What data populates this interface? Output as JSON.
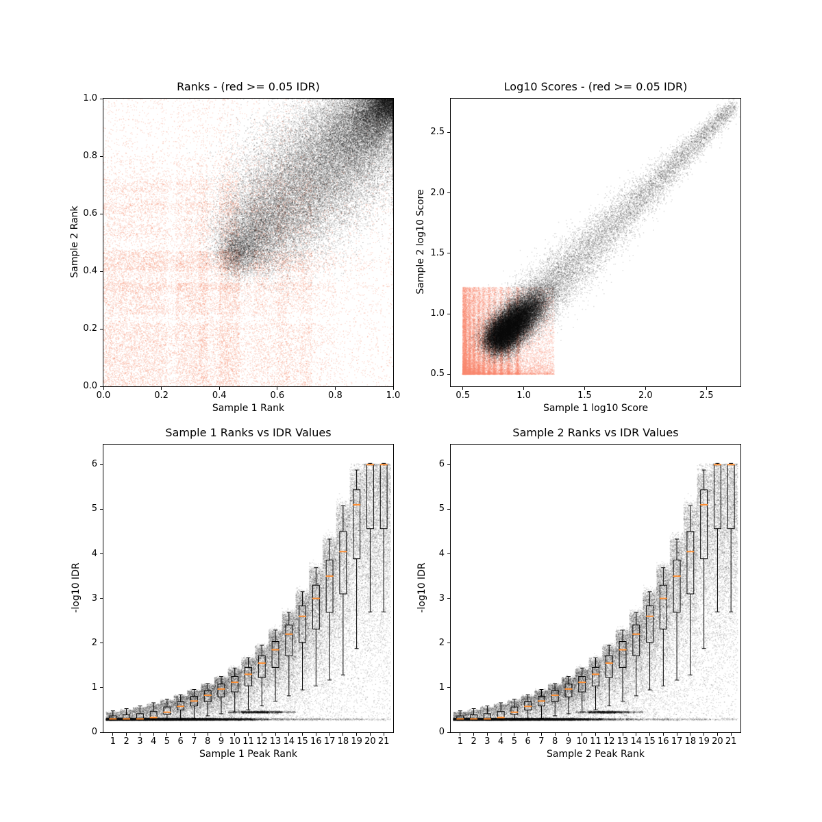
{
  "figure": {
    "background": "#ffffff"
  },
  "colors": {
    "salmon": "#F78B70",
    "black": "#000000",
    "median_orange": "#FF8F33"
  },
  "chart_data": [
    {
      "id": "ranks",
      "type": "scatter",
      "title": "Ranks - (red >= 0.05 IDR)",
      "xlabel": "Sample 1 Rank",
      "ylabel": "Sample 2 Rank",
      "xlim": [
        0.0,
        1.0
      ],
      "ylim": [
        0.0,
        1.0
      ],
      "xticks": [
        0.0,
        0.2,
        0.4,
        0.6,
        0.8,
        1.0
      ],
      "xtick_labels": [
        "0.0",
        "0.2",
        "0.4",
        "0.6",
        "0.8",
        "1.0"
      ],
      "yticks": [
        0.0,
        0.2,
        0.4,
        0.6,
        0.8,
        1.0
      ],
      "ytick_labels": [
        "0.0",
        "0.2",
        "0.4",
        "0.6",
        "0.8",
        "1.0"
      ],
      "grid": false,
      "legend": null,
      "series": [
        {
          "name": "IDR >= 0.05",
          "kind": "bands2d",
          "color": "#F78B70",
          "alpha": 0.2,
          "size": 1.6,
          "n": 26000,
          "seed": 11,
          "bands": [
            [
              0.0,
              0.22,
              30
            ],
            [
              0.22,
              0.25,
              2
            ],
            [
              0.25,
              0.3,
              7
            ],
            [
              0.3,
              0.33,
              4
            ],
            [
              0.33,
              0.36,
              6
            ],
            [
              0.36,
              0.4,
              4
            ],
            [
              0.4,
              0.43,
              6
            ],
            [
              0.43,
              0.47,
              7
            ],
            [
              0.47,
              0.52,
              3
            ],
            [
              0.52,
              0.56,
              4
            ],
            [
              0.56,
              0.6,
              3
            ],
            [
              0.6,
              0.64,
              5
            ],
            [
              0.64,
              0.68,
              3
            ],
            [
              0.68,
              0.72,
              4
            ],
            [
              0.72,
              0.8,
              3
            ],
            [
              0.8,
              1.0,
              4
            ]
          ]
        },
        {
          "name": "IDR < 0.05",
          "kind": "rank_blob",
          "color": "#000000",
          "alpha": 0.11,
          "size": 1.6,
          "n": 60000,
          "seed": 12,
          "span": 0.55,
          "tpow": 1.6,
          "wbase": 0.03,
          "wamp": 1.1,
          "wlo": 0.45
        }
      ]
    },
    {
      "id": "scores",
      "type": "scatter",
      "title": "Log10 Scores - (red >= 0.05 IDR)",
      "xlabel": "Sample 1 log10 Score",
      "ylabel": "Sample 2 log10 Score",
      "xlim": [
        0.4,
        2.78
      ],
      "ylim": [
        0.4,
        2.78
      ],
      "xticks": [
        0.5,
        1.0,
        1.5,
        2.0,
        2.5
      ],
      "xtick_labels": [
        "0.5",
        "1.0",
        "1.5",
        "2.0",
        "2.5"
      ],
      "yticks": [
        0.5,
        1.0,
        1.5,
        2.0,
        2.5
      ],
      "ytick_labels": [
        "0.5",
        "1.0",
        "1.5",
        "2.0",
        "2.5"
      ],
      "grid": false,
      "legend": null,
      "series": [
        {
          "name": "IDR >= 0.05",
          "kind": "score_salmon",
          "color": "#F78B70",
          "alpha": 0.16,
          "size": 1.6,
          "n": 24000,
          "seed": 21,
          "x0": 0.5,
          "y0": 0.5,
          "xspread": 0.75,
          "yspread": 0.72,
          "pow": 1.8,
          "stripes": [
            0.52,
            0.555,
            0.59,
            0.63,
            0.67,
            0.715,
            0.76,
            0.815,
            0.875,
            0.95
          ],
          "stripe_p": 0.45
        },
        {
          "name": "IDR < 0.05",
          "kind": "score_comet",
          "color": "#000000",
          "alpha": 0.11,
          "size": 1.6,
          "n": 48000,
          "seed": 22,
          "s0": 0.8,
          "s1": 2.72,
          "spow": 3.0,
          "wS": [
            0.8,
            1.0,
            1.4,
            1.8,
            2.2,
            2.6
          ],
          "wV": [
            0.1,
            0.13,
            0.14,
            0.11,
            0.08,
            0.05
          ],
          "head_frac": 0.5,
          "head_mu": 0.92,
          "head_sd": 0.1,
          "head_w": 0.09
        }
      ]
    },
    {
      "id": "idr_sample1",
      "type": "scatter",
      "title": "Sample 1 Ranks vs IDR Values",
      "xlabel": "Sample 1 Peak Rank",
      "ylabel": "-log10 IDR",
      "xlim": [
        0.3,
        21.7
      ],
      "ylim": [
        0.0,
        6.45
      ],
      "xticks": [
        1,
        2,
        3,
        4,
        5,
        6,
        7,
        8,
        9,
        10,
        11,
        12,
        13,
        14,
        15,
        16,
        17,
        18,
        19,
        20,
        21
      ],
      "xtick_labels": [
        "1",
        "2",
        "3",
        "4",
        "5",
        "6",
        "7",
        "8",
        "9",
        "10",
        "11",
        "12",
        "13",
        "14",
        "15",
        "16",
        "17",
        "18",
        "19",
        "20",
        "21"
      ],
      "yticks": [
        0,
        1,
        2,
        3,
        4,
        5,
        6
      ],
      "ytick_labels": [
        "0",
        "1",
        "2",
        "3",
        "4",
        "5",
        "6"
      ],
      "grid": false,
      "legend": null,
      "series": [
        {
          "name": "peaks",
          "kind": "idr_scatter",
          "color": "#000000",
          "alpha": 0.09,
          "size": 1.6,
          "n": 60000,
          "seed": 31,
          "tops": [
            0.45,
            0.5,
            0.56,
            0.63,
            0.71,
            0.81,
            0.93,
            1.06,
            1.22,
            1.41,
            1.64,
            1.92,
            2.26,
            2.66,
            3.12,
            3.66,
            4.3,
            5.05,
            5.85,
            6.0,
            6.0
          ],
          "medians": [
            0.3,
            0.3,
            0.3,
            0.33,
            0.45,
            0.58,
            0.7,
            0.83,
            0.97,
            1.12,
            1.3,
            1.55,
            1.85,
            2.2,
            2.6,
            3.0,
            3.5,
            4.05,
            5.1,
            6.0,
            6.0
          ],
          "flow": [
            0.8,
            0.8,
            0.78,
            0.74,
            0.68,
            0.6,
            0.52,
            0.44,
            0.35,
            0.26,
            0.18,
            0.09,
            0.05,
            0.04,
            0.03,
            0.03,
            0.02,
            0.02,
            0.02,
            0.01,
            0.01
          ],
          "bar2_p": [
            0,
            0,
            0,
            0,
            0,
            0,
            0,
            0,
            0,
            0.05,
            0.2,
            0.25,
            0.12,
            0.04,
            0,
            0,
            0,
            0,
            0,
            0,
            0
          ],
          "bar_y": 0.29,
          "bar_sd": 0.013,
          "bar2_y": 0.45,
          "fill_p": 0.15,
          "env_spread": 0.16
        },
        {
          "name": "boxplot",
          "kind": "idr_boxes",
          "box_color": "#000000",
          "median_color": "#FF8F33",
          "box_w": 0.5,
          "median_w": 0.55
        }
      ]
    },
    {
      "id": "idr_sample2",
      "type": "scatter",
      "title": "Sample 2 Ranks vs IDR Values",
      "xlabel": "Sample 2 Peak Rank",
      "ylabel": "-log10 IDR",
      "xlim": [
        0.3,
        21.7
      ],
      "ylim": [
        0.0,
        6.45
      ],
      "xticks": [
        1,
        2,
        3,
        4,
        5,
        6,
        7,
        8,
        9,
        10,
        11,
        12,
        13,
        14,
        15,
        16,
        17,
        18,
        19,
        20,
        21
      ],
      "xtick_labels": [
        "1",
        "2",
        "3",
        "4",
        "5",
        "6",
        "7",
        "8",
        "9",
        "10",
        "11",
        "12",
        "13",
        "14",
        "15",
        "16",
        "17",
        "18",
        "19",
        "20",
        "21"
      ],
      "yticks": [
        0,
        1,
        2,
        3,
        4,
        5,
        6
      ],
      "ytick_labels": [
        "0",
        "1",
        "2",
        "3",
        "4",
        "5",
        "6"
      ],
      "grid": false,
      "legend": null,
      "series": [
        {
          "name": "peaks",
          "kind": "idr_scatter",
          "color": "#000000",
          "alpha": 0.09,
          "size": 1.6,
          "n": 60000,
          "seed": 41,
          "tops": [
            0.45,
            0.5,
            0.56,
            0.63,
            0.71,
            0.81,
            0.93,
            1.06,
            1.22,
            1.41,
            1.64,
            1.92,
            2.26,
            2.66,
            3.12,
            3.66,
            4.3,
            5.05,
            5.85,
            6.0,
            6.0
          ],
          "medians": [
            0.3,
            0.3,
            0.3,
            0.33,
            0.45,
            0.58,
            0.7,
            0.83,
            0.97,
            1.12,
            1.3,
            1.55,
            1.85,
            2.2,
            2.6,
            3.0,
            3.5,
            4.05,
            5.1,
            6.0,
            6.0
          ],
          "flow": [
            0.8,
            0.8,
            0.78,
            0.74,
            0.68,
            0.6,
            0.52,
            0.44,
            0.35,
            0.26,
            0.18,
            0.09,
            0.05,
            0.04,
            0.03,
            0.03,
            0.02,
            0.02,
            0.02,
            0.01,
            0.01
          ],
          "bar2_p": [
            0,
            0,
            0,
            0,
            0,
            0,
            0,
            0,
            0,
            0.05,
            0.2,
            0.25,
            0.12,
            0.04,
            0,
            0,
            0,
            0,
            0,
            0,
            0
          ],
          "bar_y": 0.29,
          "bar_sd": 0.013,
          "bar2_y": 0.45,
          "fill_p": 0.15,
          "env_spread": 0.16
        },
        {
          "name": "boxplot",
          "kind": "idr_boxes",
          "box_color": "#000000",
          "median_color": "#FF8F33",
          "box_w": 0.5,
          "median_w": 0.55
        }
      ]
    }
  ]
}
